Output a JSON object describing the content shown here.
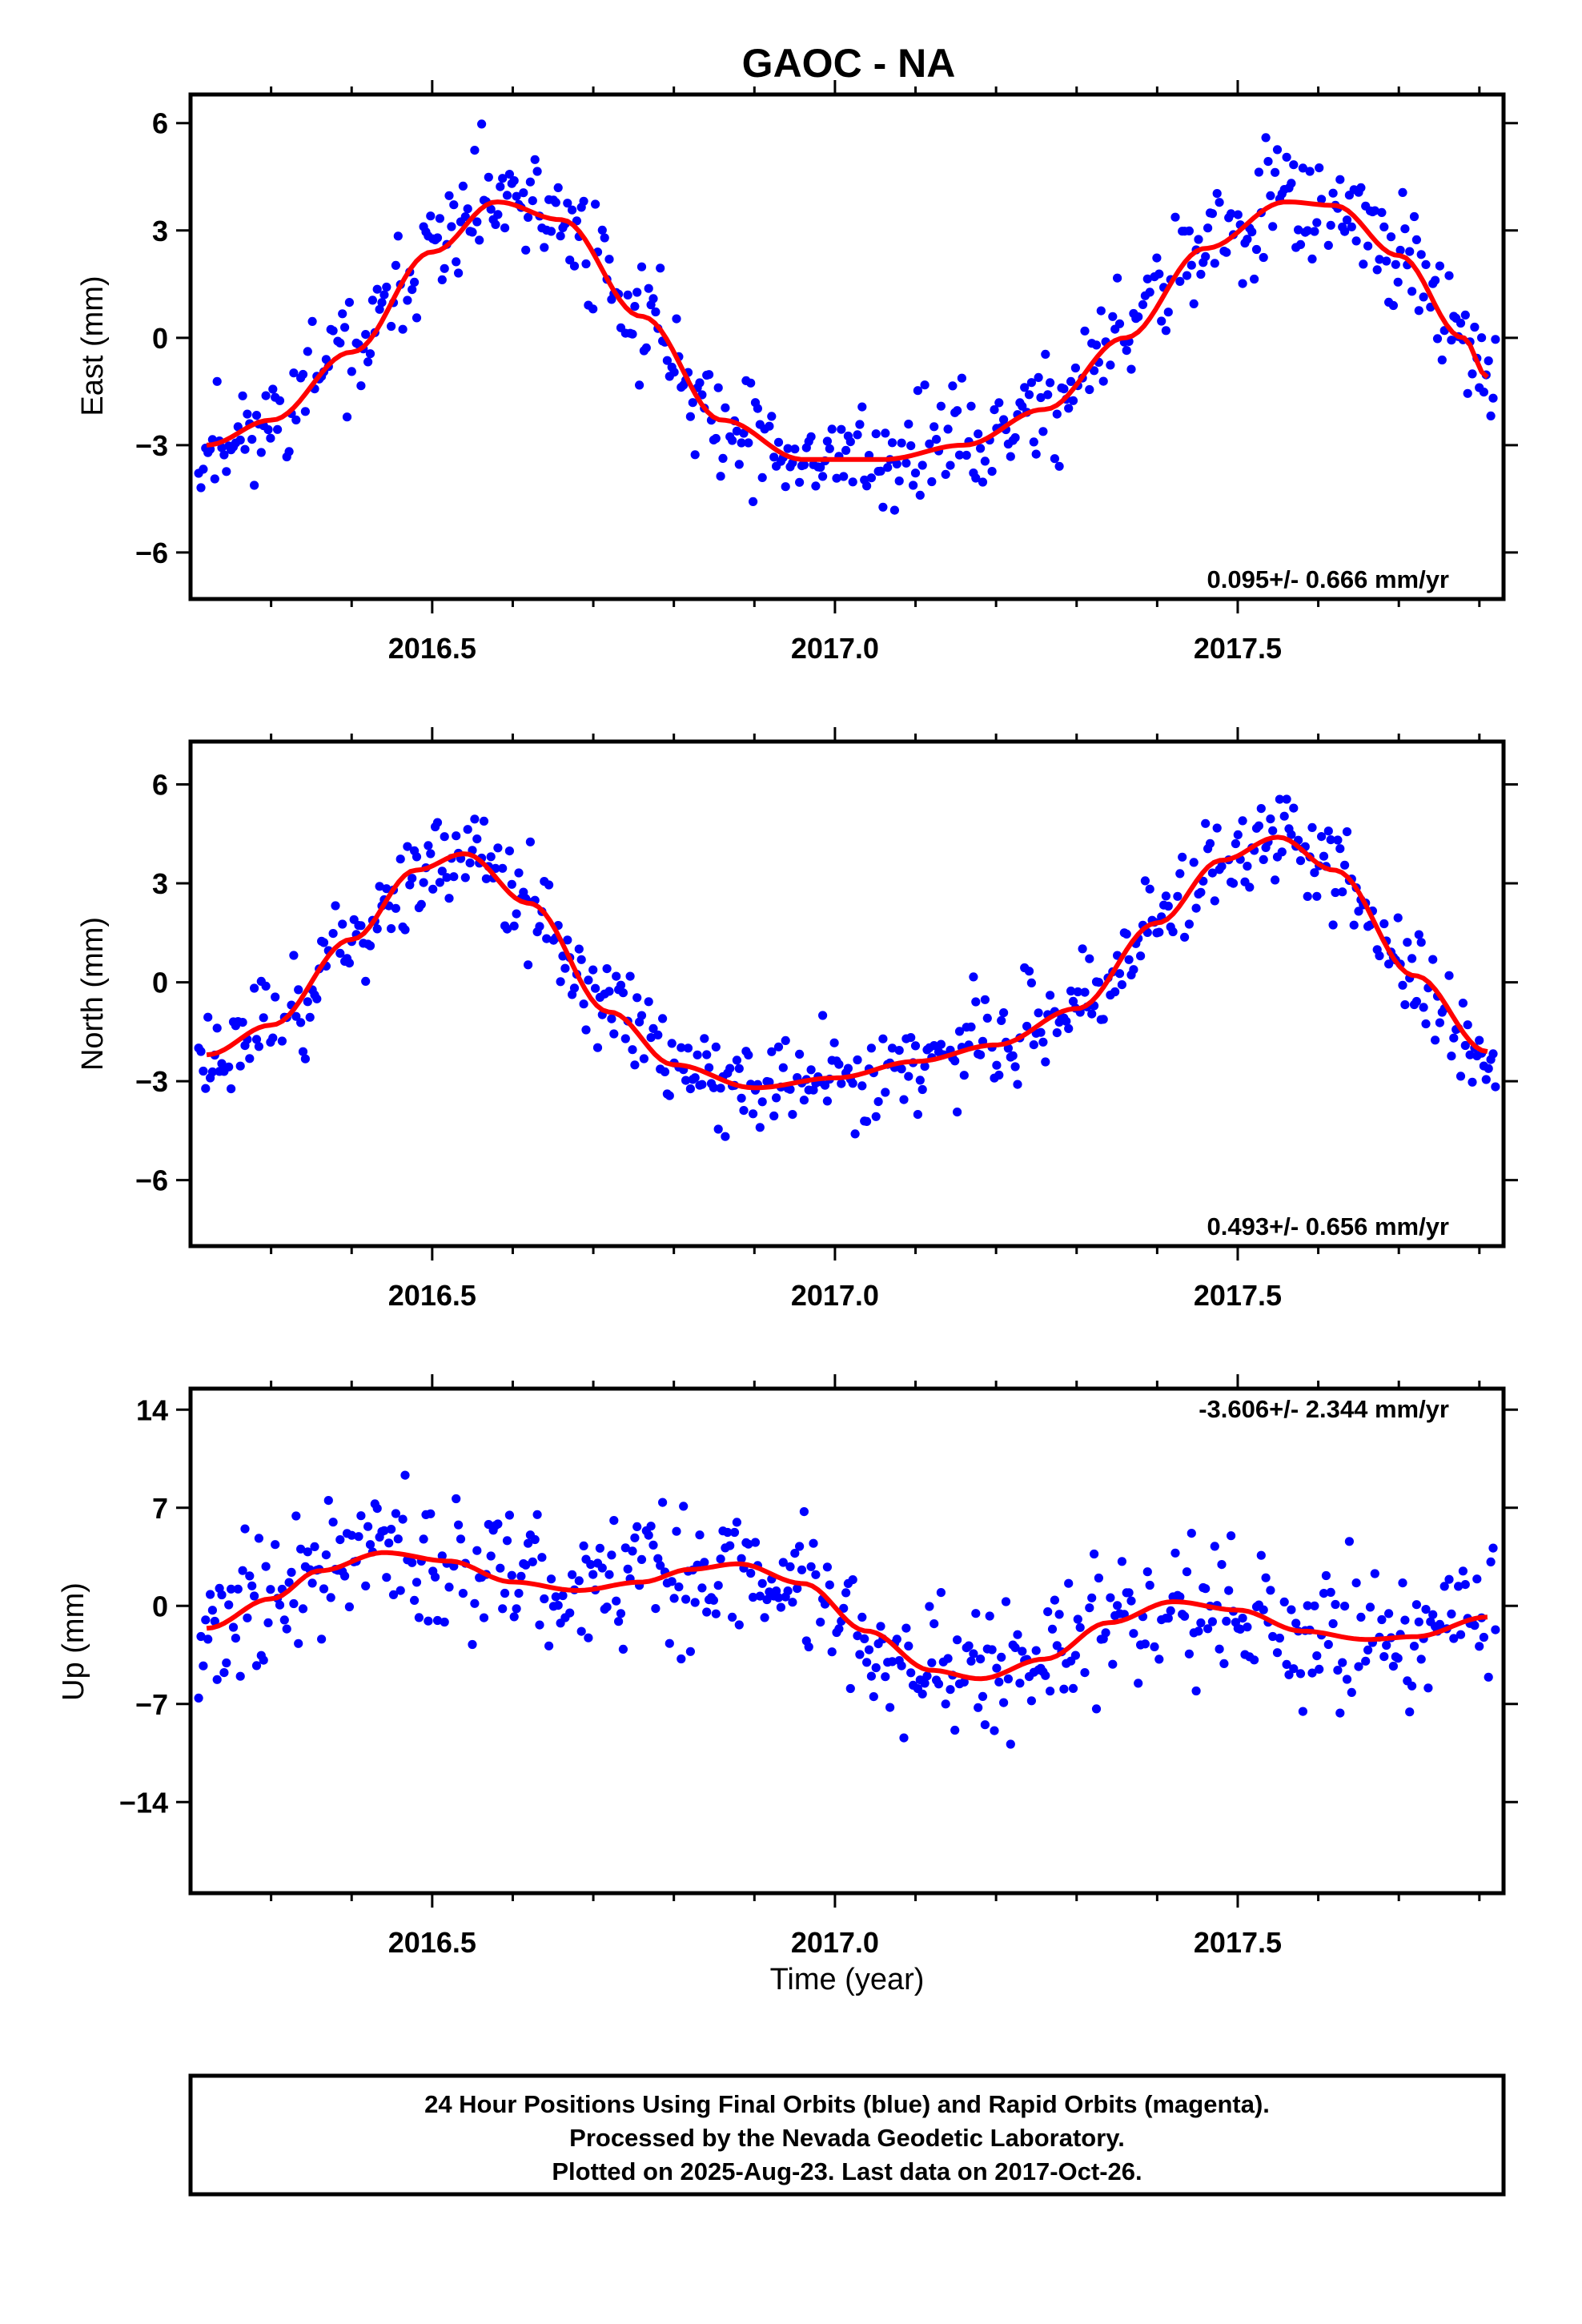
{
  "title": "GAOC - NA",
  "colors": {
    "points": "#0000ff",
    "fit": "#ff0000"
  },
  "footer": {
    "line1": "24 Hour Positions Using Final Orbits (blue) and Rapid Orbits (magenta).",
    "line2": "Processed by the Nevada Geodetic Laboratory.",
    "line3": "Plotted on 2025-Aug-23. Last data on 2017-Oct-26."
  },
  "chart_data": [
    {
      "type": "scatter",
      "ylabel": "East (mm)",
      "xlabel": "",
      "rate_label": "0.095+/- 0.666 mm/yr",
      "xlim": [
        2016.2,
        2017.83
      ],
      "ylim": [
        -7.3,
        6.8
      ],
      "xticks": [
        "2016.5",
        "2017.0",
        "2017.5"
      ],
      "yticks": [
        6,
        3,
        0,
        -3,
        -6
      ],
      "yticklabels": [
        "6",
        "3",
        "0",
        "−3",
        "−6"
      ],
      "grid": false,
      "fit_series": {
        "x": [
          2016.22,
          2016.3,
          2016.4,
          2016.5,
          2016.58,
          2016.66,
          2016.76,
          2016.86,
          2016.96,
          2017.06,
          2017.16,
          2017.26,
          2017.36,
          2017.46,
          2017.56,
          2017.62,
          2017.7,
          2017.78,
          2017.81
        ],
        "y": [
          -3.0,
          -2.3,
          -0.4,
          2.4,
          3.8,
          3.3,
          0.6,
          -2.3,
          -3.4,
          -3.4,
          -3.0,
          -2.0,
          0.0,
          2.5,
          3.8,
          3.7,
          2.3,
          0.0,
          -1.1
        ]
      },
      "scatter": {
        "n": 560,
        "amp": 1.35,
        "seed": 11,
        "x_start": 2016.21,
        "x_end": 2017.82
      }
    },
    {
      "type": "scatter",
      "ylabel": "North (mm)",
      "xlabel": "",
      "rate_label": "0.493+/- 0.656 mm/yr",
      "xlim": [
        2016.2,
        2017.83
      ],
      "ylim": [
        -8.0,
        7.3
      ],
      "xticks": [
        "2016.5",
        "2017.0",
        "2017.5"
      ],
      "yticks": [
        6,
        3,
        0,
        -3,
        -6
      ],
      "yticklabels": [
        "6",
        "3",
        "0",
        "−3",
        "−6"
      ],
      "grid": false,
      "fit_series": {
        "x": [
          2016.22,
          2016.3,
          2016.4,
          2016.48,
          2016.54,
          2016.62,
          2016.72,
          2016.8,
          2016.9,
          2017.0,
          2017.1,
          2017.2,
          2017.3,
          2017.4,
          2017.48,
          2017.55,
          2017.62,
          2017.72,
          2017.81
        ],
        "y": [
          -2.2,
          -1.3,
          1.3,
          3.4,
          3.9,
          2.4,
          -0.9,
          -2.5,
          -3.2,
          -2.9,
          -2.4,
          -1.9,
          -0.8,
          1.8,
          3.7,
          4.4,
          3.4,
          0.2,
          -2.1
        ]
      },
      "scatter": {
        "n": 560,
        "amp": 1.25,
        "seed": 23,
        "x_start": 2016.21,
        "x_end": 2017.82
      }
    },
    {
      "type": "scatter",
      "ylabel": "Up (mm)",
      "xlabel": "Time (year)",
      "rate_label": "-3.606+/- 2.344 mm/yr",
      "xlim": [
        2016.2,
        2017.83
      ],
      "ylim": [
        -20.5,
        15.5
      ],
      "xticks": [
        "2016.5",
        "2017.0",
        "2017.5"
      ],
      "yticks": [
        14,
        7,
        0,
        -7,
        -14
      ],
      "yticklabels": [
        "14",
        "7",
        "0",
        "−7",
        "−14"
      ],
      "grid": false,
      "fit_series": {
        "x": [
          2016.22,
          2016.3,
          2016.36,
          2016.44,
          2016.52,
          2016.6,
          2016.68,
          2016.76,
          2016.82,
          2016.88,
          2016.96,
          2017.04,
          2017.12,
          2017.18,
          2017.26,
          2017.34,
          2017.42,
          2017.5,
          2017.58,
          2017.66,
          2017.72,
          2017.81
        ],
        "y": [
          -1.6,
          0.5,
          2.5,
          3.8,
          3.2,
          1.7,
          1.1,
          1.7,
          2.6,
          3.0,
          1.6,
          -1.8,
          -4.6,
          -5.2,
          -3.8,
          -1.2,
          0.3,
          -0.3,
          -1.8,
          -2.4,
          -2.2,
          -0.8
        ]
      },
      "scatter": {
        "n": 560,
        "amp": 4.4,
        "seed": 37,
        "x_start": 2016.21,
        "x_end": 2017.82
      }
    }
  ]
}
